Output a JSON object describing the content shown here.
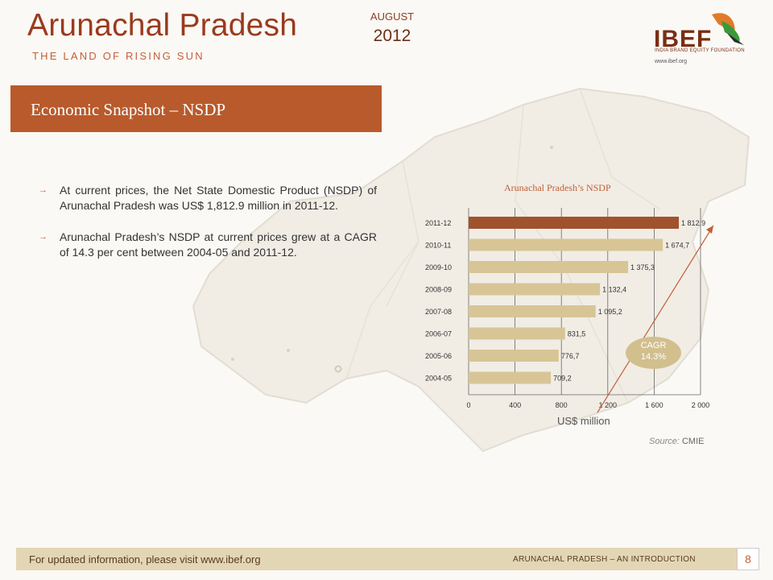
{
  "header": {
    "title": "Arunachal Pradesh",
    "tagline": "THE LAND OF RISING SUN",
    "month": "AUGUST",
    "year": "2012"
  },
  "logo": {
    "name": "IBEF",
    "subtitle": "INDIA BRAND EQUITY FOUNDATION",
    "url": "www.ibef.org"
  },
  "section": {
    "title": "Economic Snapshot – NSDP"
  },
  "bullets": [
    "At current prices, the Net State Domestic Product (NSDP) of Arunachal Pradesh was US$ 1,812.9 million in 2011-12.",
    "Arunachal Pradesh’s NSDP at current prices grew at a CAGR of 14.3 per cent between 2004-05 and 2011-12."
  ],
  "chart_data": {
    "type": "bar",
    "orientation": "horizontal",
    "title": "Arunachal Pradesh’s NSDP",
    "categories": [
      "2011-12",
      "2010-11",
      "2009-10",
      "2008-09",
      "2007-08",
      "2006-07",
      "2005-06",
      "2004-05"
    ],
    "values": [
      1812.9,
      1674.7,
      1375.3,
      1132.4,
      1095.2,
      831.5,
      776.7,
      709.2
    ],
    "data_labels": [
      "1 812,9",
      "1 674,7",
      "1 375,3",
      "1 132,4",
      "1 095,2",
      "831,5",
      "776,7",
      "709,2"
    ],
    "xlim": [
      0,
      2000
    ],
    "xticks": [
      0,
      400,
      800,
      1200,
      1600,
      2000
    ],
    "xtick_labels": [
      "0",
      "400",
      "800",
      "1 200",
      "1 600",
      "2 000"
    ],
    "xlabel": "US$ million",
    "grid": "vertical",
    "colors": {
      "highlight": "#a0522d",
      "bar": "#d8c596"
    },
    "annotation": {
      "line1": "CAGR",
      "line2": "14.3%"
    }
  },
  "source": {
    "label": "Source:",
    "value": "CMIE"
  },
  "footer": {
    "left": "For updated information, please visit www.ibef.org",
    "right": "ARUNACHAL PRADESH – AN INTRODUCTION",
    "page": "8"
  }
}
